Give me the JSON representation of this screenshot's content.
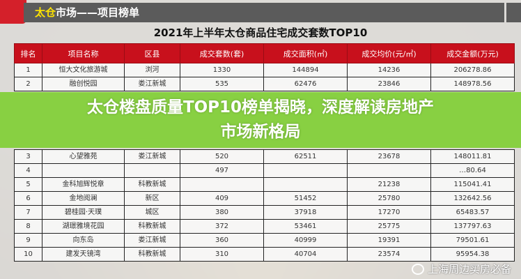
{
  "header": {
    "title_highlight": "太仓",
    "title_rest": "市场——项目榜单"
  },
  "caption": "2021年上半年太仓商品住宅成交套数TOP10",
  "table": {
    "columns": [
      "排名",
      "项目名称",
      "区县",
      "成交套数(套)",
      "成交面积(㎡)",
      "成交均价(元/㎡)",
      "成交金额(万元)"
    ],
    "rows": [
      [
        "1",
        "恒大文化旅游城",
        "浏河",
        "1330",
        "144894",
        "14236",
        "206278.86"
      ],
      [
        "2",
        "融创悦园",
        "娄江新城",
        "535",
        "62476",
        "23846",
        "148978.56"
      ],
      [
        "3",
        "心望雅苑",
        "娄江新城",
        "520",
        "62511",
        "23678",
        "148011.81"
      ],
      [
        "4",
        "",
        "",
        "497",
        "",
        "",
        "…80.64"
      ],
      [
        "5",
        "金科旭辉悦章",
        "科教新城",
        "",
        "",
        "21238",
        "115041.41"
      ],
      [
        "6",
        "金地阅澜",
        "新区",
        "409",
        "51452",
        "25780",
        "132642.56"
      ],
      [
        "7",
        "碧桂园·天璞",
        "城区",
        "380",
        "37918",
        "17270",
        "65483.57"
      ],
      [
        "8",
        "湖璟雅境花园",
        "科教新城",
        "372",
        "53461",
        "25775",
        "137797.63"
      ],
      [
        "9",
        "向东岛",
        "娄江新城",
        "360",
        "40999",
        "19391",
        "79501.61"
      ],
      [
        "10",
        "建发天镜湾",
        "科教新城",
        "310",
        "40704",
        "23574",
        "95954.38"
      ]
    ]
  },
  "banner": {
    "line1": "太仓楼盘质量TOP10榜单揭晓，深度解读房地产",
    "line2": "市场新格局"
  },
  "watermark": {
    "icon": "wechat-icon",
    "text": "上海周边买房必备"
  },
  "colors": {
    "header_red": "#c8101c",
    "banner_green": "#7ece32",
    "topbar": "#5b5b5b",
    "highlight": "#ffe400"
  }
}
